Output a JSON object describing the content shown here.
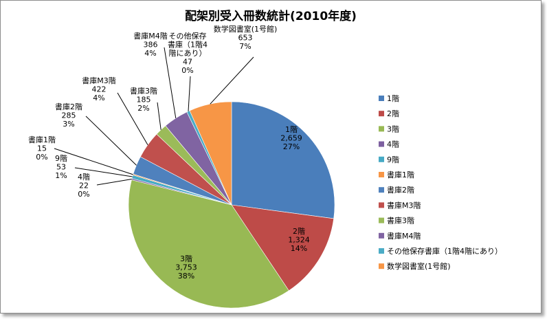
{
  "chart_data": {
    "type": "pie",
    "title": "配架別受入冊数統計(2010年度)",
    "categories": [
      "1階",
      "2階",
      "3階",
      "4階",
      "9階",
      "書庫1階",
      "書庫2階",
      "書庫M3階",
      "書庫3階",
      "書庫M4階",
      "その他保存書庫（1階4階にあり）",
      "数学図書室(1号館)"
    ],
    "values": [
      2659,
      1324,
      3753,
      22,
      53,
      15,
      285,
      422,
      185,
      386,
      47,
      653
    ],
    "value_labels": [
      "2,659",
      "1,324",
      "3,753",
      "22",
      "53",
      "15",
      "285",
      "422",
      "185",
      "386",
      "47",
      "653"
    ],
    "percent_labels": [
      "27%",
      "14%",
      "38%",
      "0%",
      "1%",
      "0%",
      "3%",
      "4%",
      "2%",
      "4%",
      "0%",
      "7%"
    ],
    "colors": [
      "#4a7ebb",
      "#be4b48",
      "#98b954",
      "#7d60a0",
      "#46aac5",
      "#f79646",
      "#4f81bd",
      "#c0504d",
      "#9bbb59",
      "#8064a2",
      "#4bacc6",
      "#f79646"
    ],
    "data_label_lines": [
      [
        "1階",
        "2,659",
        "27%"
      ],
      [
        "2階",
        "1,324",
        "14%"
      ],
      [
        "3階",
        "3,753",
        "38%"
      ],
      [
        "4階",
        "22",
        "0%"
      ],
      [
        "9階",
        "53",
        "1%"
      ],
      [
        "書庫1階",
        "15",
        "0%"
      ],
      [
        "書庫2階",
        "285",
        "3%"
      ],
      [
        "書庫M3階",
        "422",
        "4%"
      ],
      [
        "書庫3階",
        "185",
        "2%"
      ],
      [
        "書庫M4階",
        "386",
        "4%"
      ],
      [
        "その他保存",
        "書庫（1階4",
        "階にあり）",
        "47",
        "0%"
      ],
      [
        "数学図書室(1号館)",
        "653",
        "7%"
      ]
    ],
    "legend": [
      "1階",
      "2階",
      "3階",
      "4階",
      "9階",
      "書庫1階",
      "書庫2階",
      "書庫M3階",
      "書庫3階",
      "書庫M4階",
      "その他保存書庫（1階4階にあり）",
      "数学図書室(1号館)"
    ],
    "legend_position": "right"
  }
}
